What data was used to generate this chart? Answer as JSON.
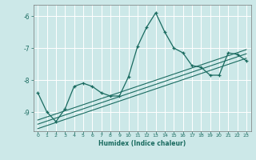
{
  "xlabel": "Humidex (Indice chaleur)",
  "ylabel": "",
  "bg_color": "#cce8e8",
  "line_color": "#1a6b60",
  "grid_color": "#ffffff",
  "x_data": [
    0,
    1,
    2,
    3,
    4,
    5,
    6,
    7,
    8,
    9,
    10,
    11,
    12,
    13,
    14,
    15,
    16,
    17,
    18,
    19,
    20,
    21,
    22,
    23
  ],
  "y_data": [
    -8.4,
    -9.0,
    -9.3,
    -8.9,
    -8.2,
    -8.1,
    -8.2,
    -8.4,
    -8.5,
    -8.5,
    -7.9,
    -6.95,
    -6.35,
    -5.9,
    -6.5,
    -7.0,
    -7.15,
    -7.55,
    -7.6,
    -7.85,
    -7.85,
    -7.15,
    -7.2,
    -7.4
  ],
  "ylim": [
    -9.6,
    -5.65
  ],
  "xlim": [
    -0.5,
    23.5
  ],
  "yticks": [
    -9,
    -8,
    -7,
    -6
  ],
  "xticks": [
    0,
    1,
    2,
    3,
    4,
    5,
    6,
    7,
    8,
    9,
    10,
    11,
    12,
    13,
    14,
    15,
    16,
    17,
    18,
    19,
    20,
    21,
    22,
    23
  ],
  "reg_lines": [
    {
      "x0": 0,
      "y0": -9.25,
      "x1": 23,
      "y1": -7.05
    },
    {
      "x0": 0,
      "y0": -9.38,
      "x1": 23,
      "y1": -7.18
    },
    {
      "x0": 0,
      "y0": -9.52,
      "x1": 23,
      "y1": -7.32
    }
  ]
}
